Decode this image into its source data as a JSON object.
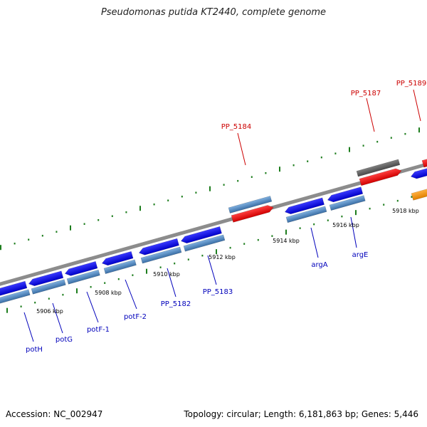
{
  "title": "Pseudomonas putida KT2440, complete genome",
  "footer": {
    "accession": "Accession: NC_002947",
    "summary": "Topology: circular; Length: 6,181,863 bp; Genes: 5,446"
  },
  "colors": {
    "backbone": "#8c8c8c",
    "cds_blue": "#0a0ae6",
    "light_blue": "#4f86bf",
    "red": "#ee1111",
    "gray_gene": "#5f5f5f",
    "orange": "#f39a1a",
    "tick_green": "#1d7d1d",
    "label_blue": "#0000bb",
    "label_red": "#cc0000"
  },
  "kbp_labels": [
    "5906 kbp",
    "5908 kbp",
    "5910 kbp",
    "5912 kbp",
    "5914 kbp",
    "5916 kbp",
    "5918 kbp"
  ],
  "gene_labels": [
    {
      "text": "potH",
      "color": "blue"
    },
    {
      "text": "potG",
      "color": "blue"
    },
    {
      "text": "potF-1",
      "color": "blue"
    },
    {
      "text": "potF-2",
      "color": "blue"
    },
    {
      "text": "PP_5182",
      "color": "blue"
    },
    {
      "text": "PP_5183",
      "color": "blue"
    },
    {
      "text": "argA",
      "color": "blue"
    },
    {
      "text": "argE",
      "color": "blue"
    },
    {
      "text": "PP_5184",
      "color": "red"
    },
    {
      "text": "PP_5187",
      "color": "red"
    },
    {
      "text": "PP_5189",
      "color": "red"
    }
  ]
}
